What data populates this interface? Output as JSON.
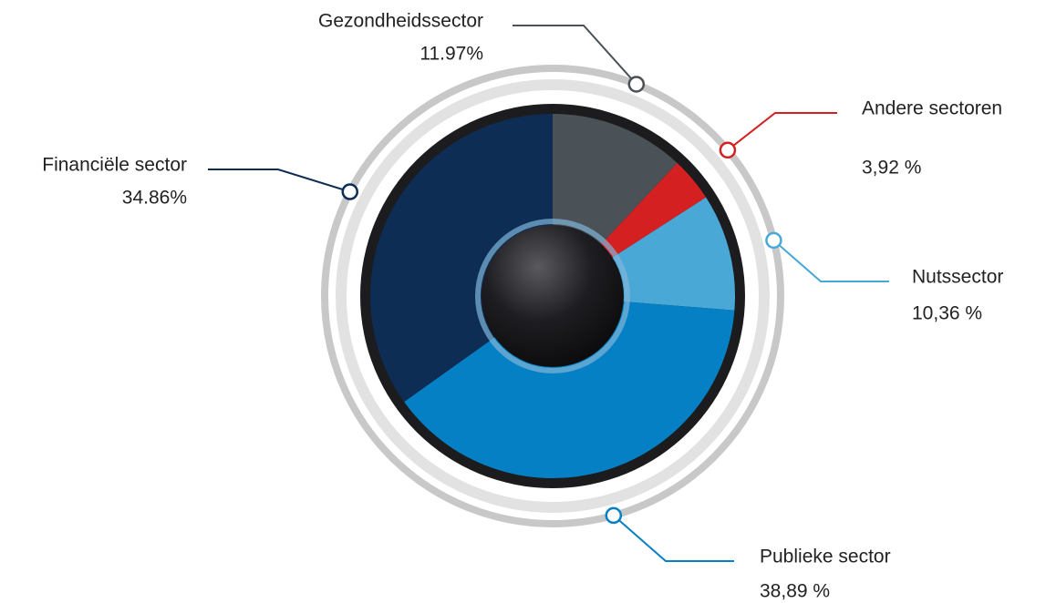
{
  "chart_data": {
    "type": "pie",
    "categories": [
      "Gezondheidssector",
      "Andere sectoren",
      "Nutssector",
      "Publieke sector",
      "Financiële sector"
    ],
    "values": [
      11.97,
      3.92,
      10.36,
      38.89,
      34.86
    ],
    "value_labels": [
      "11.97%",
      "3,92 %",
      "10,36 %",
      "38,89 %",
      "34.86%"
    ],
    "colors": [
      "#4a5157",
      "#d42020",
      "#4aa8d6",
      "#0580c4",
      "#0d2d55"
    ]
  }
}
